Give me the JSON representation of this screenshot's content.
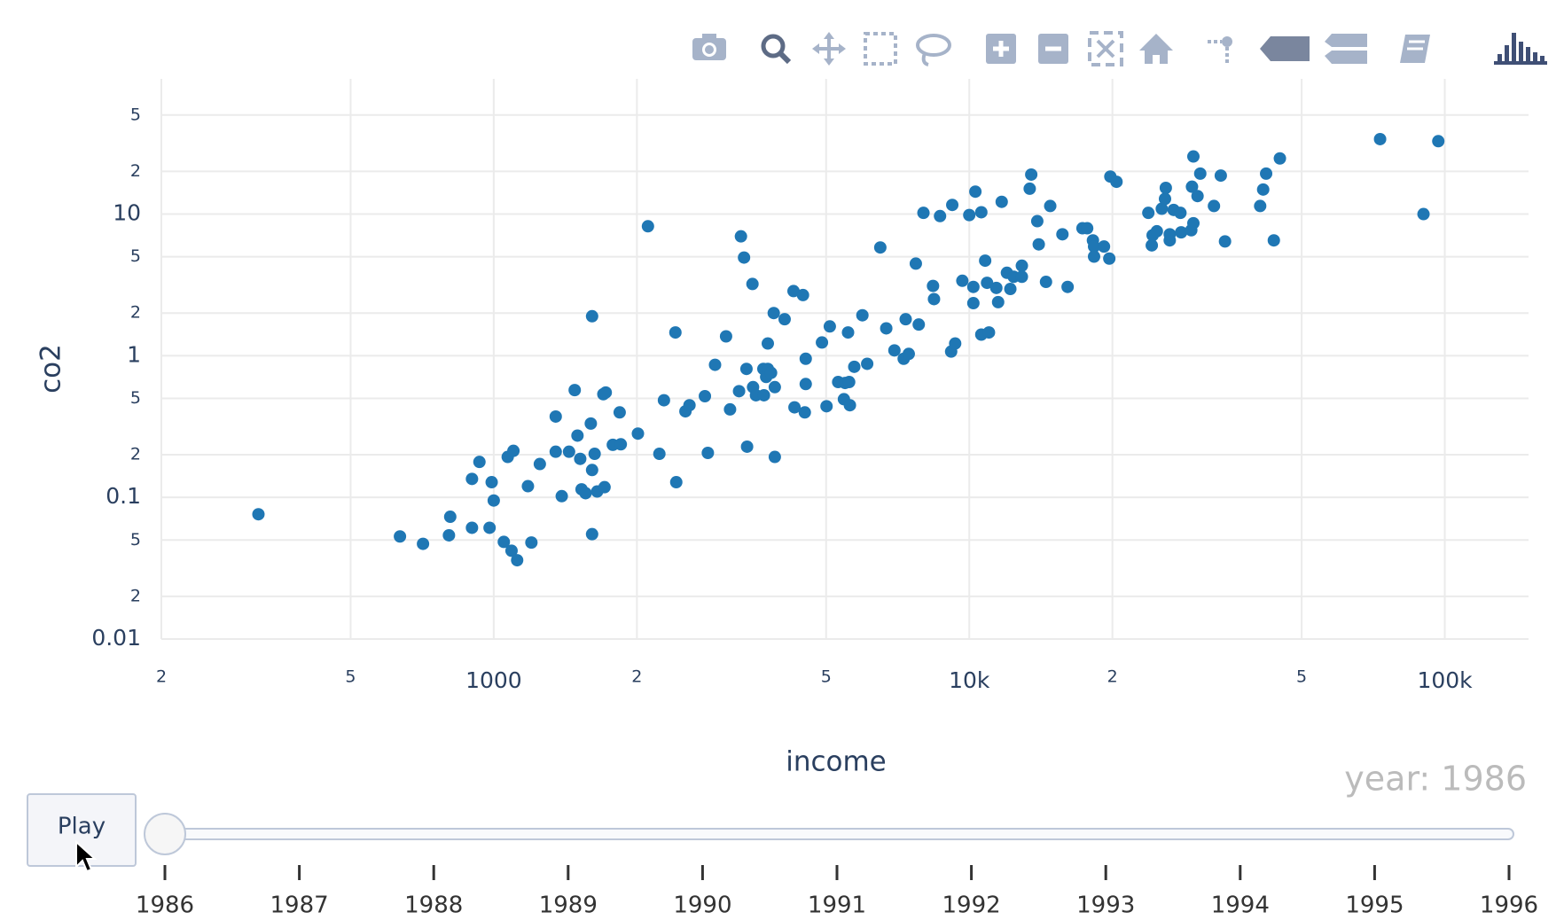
{
  "chart_data": {
    "type": "scatter",
    "x_label": "income",
    "y_label": "co2",
    "log_x": true,
    "log_y": true,
    "grid": true,
    "color": "#1f77b4",
    "xlim": [
      200,
      150000
    ],
    "ylim": [
      0.01,
      90
    ],
    "xticks": [
      {
        "value": 200,
        "label": "2"
      },
      {
        "value": 500,
        "label": "5"
      },
      1000,
      {
        "value": 2000,
        "label": "2"
      },
      {
        "value": 5000,
        "label": "5"
      },
      {
        "value": 10000,
        "label": "10k"
      },
      {
        "value": 20000,
        "label": "2"
      },
      {
        "value": 50000,
        "label": "5"
      },
      {
        "value": 100000,
        "label": "100k"
      }
    ],
    "yticks": [
      0.01,
      {
        "value": 0.02,
        "label": "2"
      },
      {
        "value": 0.05,
        "label": "5"
      },
      0.1,
      {
        "value": 0.2,
        "label": "2"
      },
      {
        "value": 0.5,
        "label": "5"
      },
      1,
      {
        "value": 2,
        "label": "2"
      },
      {
        "value": 5,
        "label": "5"
      },
      10,
      {
        "value": 20,
        "label": "2"
      },
      {
        "value": 50,
        "label": "5"
      }
    ],
    "x": [
      320,
      635,
      710,
      810,
      805,
      900,
      900,
      933,
      980,
      990,
      1000,
      1050,
      1070,
      1100,
      1090,
      1120,
      1180,
      1200,
      1250,
      1350,
      1350,
      1390,
      1440,
      1480,
      1500,
      1520,
      1530,
      1560,
      1600,
      1610,
      1610,
      1610,
      1630,
      1650,
      1710,
      1700,
      1720,
      1780,
      1850,
      1840,
      2010,
      2110,
      2230,
      2280,
      2410,
      2420,
      2530,
      2580,
      2780,
      2820,
      2920,
      3080,
      3140,
      3280,
      3310,
      3360,
      3400,
      3410,
      3500,
      3510,
      3560,
      3690,
      3700,
      3740,
      3770,
      3770,
      3830,
      3900,
      3880,
      3900,
      4090,
      4270,
      4290,
      4470,
      4510,
      4530,
      4530,
      4900,
      5010,
      5090,
      5300,
      5450,
      5480,
      5560,
      5590,
      5610,
      5730,
      5960,
      6100,
      6500,
      6690,
      6960,
      7280,
      7350,
      7460,
      7720,
      7830,
      8010,
      8390,
      8430,
      8680,
      9160,
      9210,
      9340,
      9670,
      10000,
      10200,
      10300,
      10200,
      10600,
      10600,
      10800,
      10900,
      11000,
      11400,
      11500,
      11700,
      12000,
      12200,
      12400,
      12900,
      12900,
      13500,
      13400,
      13900,
      14000,
      14500,
      14800,
      15700,
      16100,
      17300,
      17700,
      18200,
      18300,
      18300,
      19200,
      19700,
      19800,
      20400,
      23800,
      24200,
      24300,
      24800,
      25400,
      25800,
      25900,
      26400,
      26400,
      26900,
      27800,
      27900,
      29300,
      29400,
      29600,
      29600,
      30200,
      30600,
      32700,
      33800,
      34500,
      40900,
      41500,
      42100,
      43700,
      45000,
      73100,
      90200,
      96900
    ],
    "values": [
      0.076,
      0.053,
      0.047,
      0.073,
      0.054,
      0.135,
      0.061,
      0.178,
      0.061,
      0.128,
      0.095,
      0.0485,
      0.193,
      0.213,
      0.042,
      0.036,
      0.12,
      0.048,
      0.172,
      0.372,
      0.21,
      0.102,
      0.21,
      0.572,
      0.273,
      0.187,
      0.114,
      0.107,
      0.332,
      0.156,
      1.9,
      0.055,
      0.203,
      0.11,
      0.118,
      0.535,
      0.55,
      0.235,
      0.237,
      0.398,
      0.282,
      8.2,
      0.203,
      0.485,
      1.46,
      0.128,
      0.405,
      0.447,
      0.518,
      0.206,
      0.863,
      1.37,
      0.418,
      0.562,
      6.96,
      4.93,
      0.807,
      0.228,
      3.21,
      0.6,
      0.526,
      0.807,
      0.526,
      0.708,
      0.807,
      1.22,
      0.757,
      0.6,
      2.0,
      0.193,
      1.81,
      2.86,
      0.432,
      2.68,
      0.398,
      0.952,
      0.631,
      1.24,
      0.44,
      1.61,
      0.652,
      0.493,
      0.642,
      1.46,
      0.652,
      0.447,
      0.835,
      1.93,
      0.877,
      5.81,
      1.56,
      1.09,
      0.952,
      1.81,
      1.03,
      4.47,
      1.66,
      10.2,
      3.11,
      2.51,
      9.68,
      1.07,
      11.6,
      1.22,
      3.38,
      9.84,
      2.35,
      14.4,
      3.06,
      10.3,
      1.41,
      4.69,
      3.27,
      1.46,
      3.01,
      2.39,
      12.2,
      3.85,
      2.96,
      3.61,
      4.32,
      3.61,
      19.0,
      15.1,
      8.91,
      6.11,
      3.32,
      11.4,
      7.2,
      3.06,
      7.94,
      7.94,
      6.52,
      5.9,
      5.01,
      5.9,
      4.85,
      18.4,
      16.9,
      10.2,
      6.01,
      7.08,
      7.56,
      10.9,
      12.8,
      15.3,
      6.52,
      7.2,
      10.7,
      10.2,
      7.43,
      7.69,
      15.6,
      8.62,
      25.5,
      13.4,
      19.3,
      11.4,
      18.7,
      6.41,
      11.4,
      14.9,
      19.3,
      6.52,
      24.7,
      33.8,
      10,
      32.7
    ],
    "slider": {
      "current_label": "year: 1986",
      "button": "Play",
      "steps": [
        "1986",
        "1987",
        "1988",
        "1989",
        "1990",
        "1991",
        "1992",
        "1993",
        "1994",
        "1995",
        "1996"
      ]
    }
  }
}
